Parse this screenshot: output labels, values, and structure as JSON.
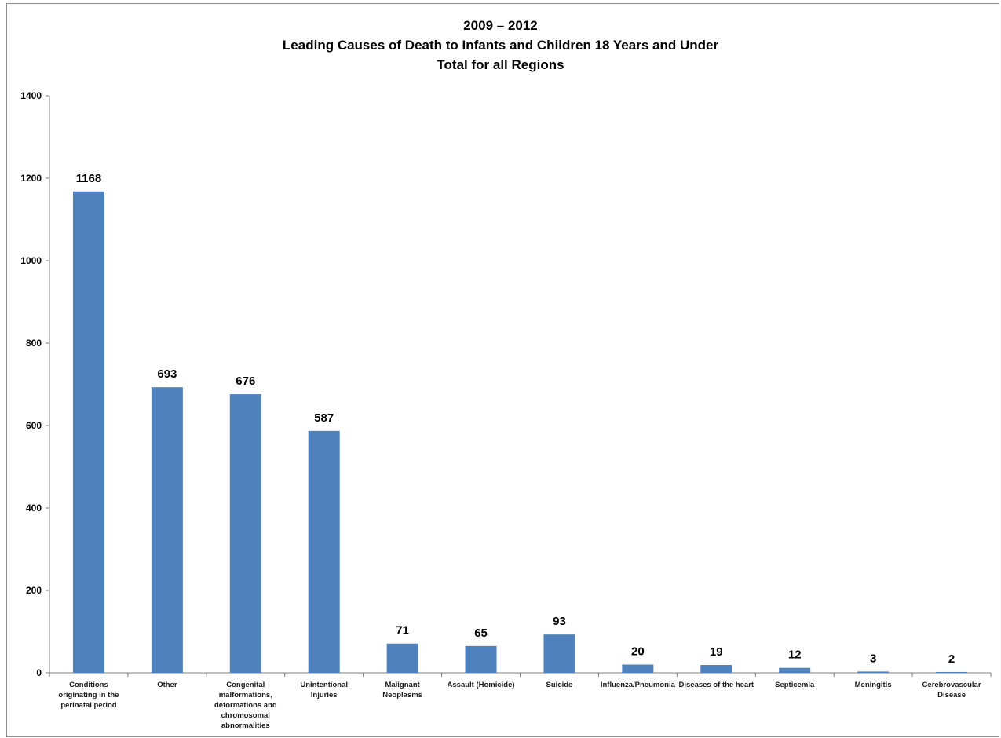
{
  "chart_data": {
    "type": "bar",
    "title": [
      "2009 – 2012",
      "Leading Causes of Death to Infants and Children 18 Years and Under",
      "Total for all Regions"
    ],
    "xlabel": "",
    "ylabel": "",
    "ylim": [
      0,
      1400
    ],
    "yticks": [
      0,
      200,
      400,
      600,
      800,
      1000,
      1200,
      1400
    ],
    "grid": false,
    "legend": "none",
    "bar_color": "#4f81bd",
    "categories": [
      "Conditions originating in the perinatal period",
      "Other",
      "Congenital malformations, deformations and chromosomal abnormalities",
      "Unintentional Injuries",
      "Malignant Neoplasms",
      "Assault (Homicide)",
      "Suicide",
      "Influenza/Pneumonia",
      "Diseases of the heart",
      "Septicemia",
      "Meningitis",
      "Cerebrovascular Disease"
    ],
    "category_label_lines": [
      [
        "Conditions",
        "originating in the",
        "perinatal period"
      ],
      [
        "Other"
      ],
      [
        "Congenital",
        "malformations,",
        "deformations and",
        "chromosomal",
        "abnormalities"
      ],
      [
        "Unintentional",
        "Injuries"
      ],
      [
        "Malignant",
        "Neoplasms"
      ],
      [
        "Assault (Homicide)"
      ],
      [
        "Suicide"
      ],
      [
        "Influenza/Pneumonia"
      ],
      [
        "Diseases of the heart"
      ],
      [
        "Septicemia"
      ],
      [
        "Meningitis"
      ],
      [
        "Cerebrovascular",
        "Disease"
      ]
    ],
    "values": [
      1168,
      693,
      676,
      587,
      71,
      65,
      93,
      20,
      19,
      12,
      3,
      2
    ]
  }
}
